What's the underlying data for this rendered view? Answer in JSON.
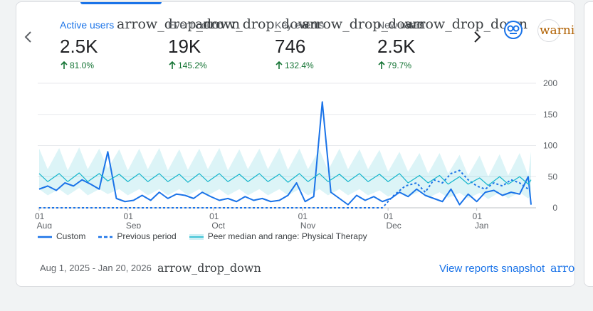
{
  "tabs": [
    {
      "label": "Active users",
      "icon": "arrow_drop_down",
      "value": "2.5K",
      "change": "81.0%"
    },
    {
      "label": "Event count",
      "icon": "arrow_drop_down",
      "value": "19K",
      "change": "145.2%"
    },
    {
      "label": "Key events",
      "icon": "arrow_drop_down",
      "value": "746",
      "change": "132.4%"
    },
    {
      "label": "New users",
      "icon": "arrow_drop_down",
      "value": "2.5K",
      "change": "79.7%"
    }
  ],
  "warning_icon": "warning",
  "footer": {
    "date_range": "Aug 1, 2025 - Jan 20, 2026",
    "date_icon": "arrow_drop_down",
    "link": "View reports snapshot",
    "link_icon": "arrow_forward"
  },
  "chart_data": {
    "type": "line",
    "xlim": [
      0,
      172
    ],
    "ylim": [
      0,
      200
    ],
    "yticks": [
      0,
      50,
      100,
      150,
      200
    ],
    "grid": true,
    "xticks": [
      {
        "value": 0,
        "label": "01 Aug"
      },
      {
        "value": 31,
        "label": "01 Sep"
      },
      {
        "value": 61,
        "label": "01 Oct"
      },
      {
        "value": 92,
        "label": "01 Nov"
      },
      {
        "value": 122,
        "label": "01 Dec"
      },
      {
        "value": 153,
        "label": "01 Jan"
      }
    ],
    "series": [
      {
        "name": "Custom",
        "color": "#1a73e8",
        "style": "solid",
        "x": [
          0,
          3,
          6,
          9,
          12,
          15,
          18,
          21,
          24,
          27,
          30,
          33,
          36,
          39,
          42,
          45,
          48,
          51,
          54,
          57,
          60,
          63,
          66,
          69,
          72,
          75,
          78,
          81,
          84,
          87,
          90,
          93,
          96,
          99,
          102,
          105,
          108,
          111,
          114,
          117,
          120,
          123,
          126,
          129,
          132,
          135,
          138,
          141,
          144,
          147,
          150,
          153,
          156,
          159,
          162,
          165,
          168,
          171,
          172
        ],
        "values": [
          30,
          35,
          28,
          40,
          35,
          45,
          38,
          30,
          90,
          15,
          10,
          12,
          20,
          12,
          25,
          15,
          22,
          20,
          15,
          25,
          18,
          12,
          15,
          10,
          18,
          12,
          15,
          10,
          12,
          20,
          40,
          10,
          18,
          170,
          25,
          15,
          5,
          20,
          12,
          18,
          10,
          15,
          25,
          18,
          30,
          20,
          15,
          10,
          30,
          5,
          22,
          10,
          25,
          28,
          20,
          25,
          22,
          50,
          5
        ]
      },
      {
        "name": "Previous period",
        "color": "#1a73e8",
        "style": "dashed",
        "x": [
          0,
          120,
          124,
          128,
          132,
          135,
          138,
          141,
          144,
          147,
          150,
          153,
          156,
          159,
          162,
          165,
          168,
          171
        ],
        "values": [
          0,
          0,
          20,
          35,
          40,
          25,
          45,
          40,
          55,
          60,
          45,
          35,
          30,
          40,
          35,
          45,
          40,
          30
        ]
      },
      {
        "name": "Peer median and range: Physical Therapy",
        "color": "#12b5cb",
        "style": "band",
        "x": [
          0,
          3,
          7,
          10,
          14,
          17,
          21,
          24,
          28,
          31,
          35,
          38,
          42,
          45,
          49,
          52,
          56,
          59,
          63,
          66,
          70,
          73,
          77,
          80,
          84,
          87,
          91,
          94,
          98,
          101,
          105,
          108,
          112,
          115,
          119,
          122,
          126,
          129,
          133,
          136,
          140,
          143,
          147,
          150,
          154,
          157,
          161,
          164,
          168,
          171,
          172
        ],
        "values": [
          55,
          42,
          55,
          42,
          56,
          42,
          55,
          43,
          54,
          42,
          55,
          42,
          55,
          42,
          54,
          41,
          55,
          42,
          55,
          42,
          54,
          42,
          55,
          42,
          54,
          41,
          55,
          42,
          55,
          42,
          54,
          42,
          55,
          42,
          54,
          42,
          55,
          40,
          52,
          40,
          52,
          38,
          50,
          38,
          48,
          36,
          50,
          38,
          50,
          38,
          45
        ],
        "high": [
          95,
          62,
          96,
          60,
          97,
          62,
          95,
          63,
          94,
          60,
          95,
          62,
          96,
          60,
          94,
          61,
          95,
          62,
          96,
          60,
          94,
          62,
          95,
          62,
          96,
          61,
          95,
          62,
          94,
          60,
          95,
          62,
          94,
          62,
          93,
          58,
          90,
          58,
          88,
          55,
          88,
          55,
          85,
          52,
          84,
          50,
          86,
          52,
          88,
          52,
          90
        ],
        "low": [
          30,
          20,
          30,
          20,
          32,
          20,
          30,
          22,
          30,
          20,
          30,
          20,
          30,
          20,
          30,
          20,
          30,
          20,
          30,
          20,
          30,
          20,
          30,
          20,
          30,
          20,
          30,
          20,
          30,
          20,
          30,
          20,
          30,
          20,
          28,
          18,
          26,
          18,
          26,
          16,
          25,
          16,
          24,
          15,
          24,
          14,
          25,
          15,
          25,
          15,
          20
        ]
      }
    ]
  }
}
